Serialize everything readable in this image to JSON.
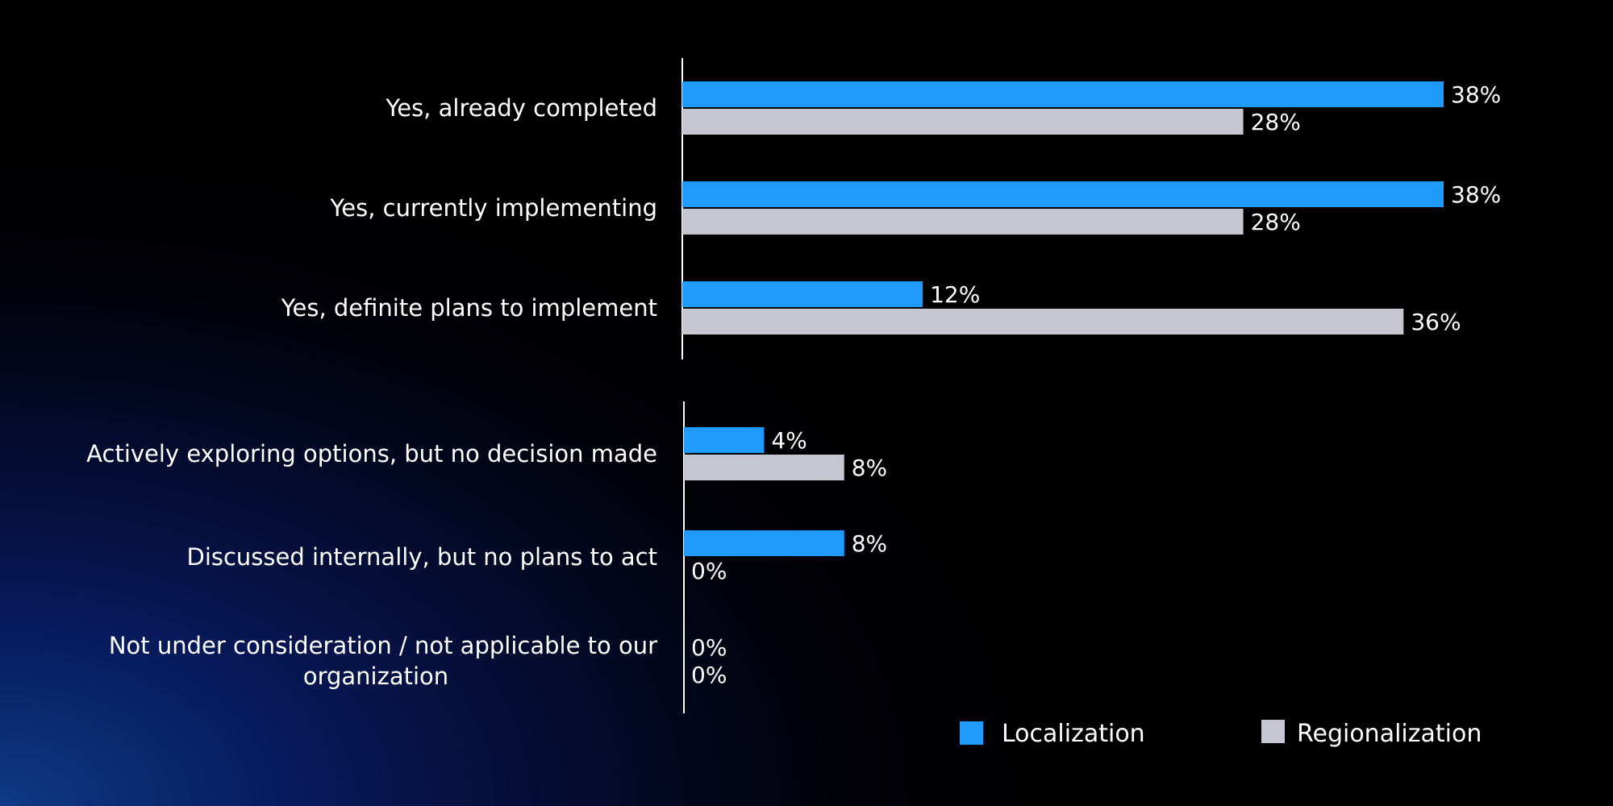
{
  "chart_data": {
    "type": "bar",
    "orientation": "horizontal",
    "categories": [
      [
        "Yes, already completed"
      ],
      [
        "Yes, currently implementing"
      ],
      [
        "Yes, definite plans to implement"
      ],
      [
        "Actively exploring options, but no decision made"
      ],
      [
        "Discussed internally, but no plans to act"
      ],
      [
        "Not under consideration / not applicable to our",
        "organization"
      ]
    ],
    "groups": [
      [
        0,
        1,
        2
      ],
      [
        3,
        4,
        5
      ]
    ],
    "series": [
      {
        "name": "Localization",
        "color": "#1e9bfd",
        "values": [
          38,
          38,
          12,
          4,
          8,
          0
        ],
        "labels": [
          "38%",
          "38%",
          "12%",
          "4%",
          "8%",
          "0%"
        ]
      },
      {
        "name": "Regionalization",
        "color": "#c6c6d0",
        "values": [
          28,
          28,
          36,
          8,
          0,
          0
        ],
        "labels": [
          "28%",
          "28%",
          "36%",
          "8%",
          "0%",
          "0%"
        ]
      }
    ],
    "unit": "%",
    "xlim": [
      0,
      38
    ],
    "grid": false,
    "legend_position": "bottom-right"
  }
}
